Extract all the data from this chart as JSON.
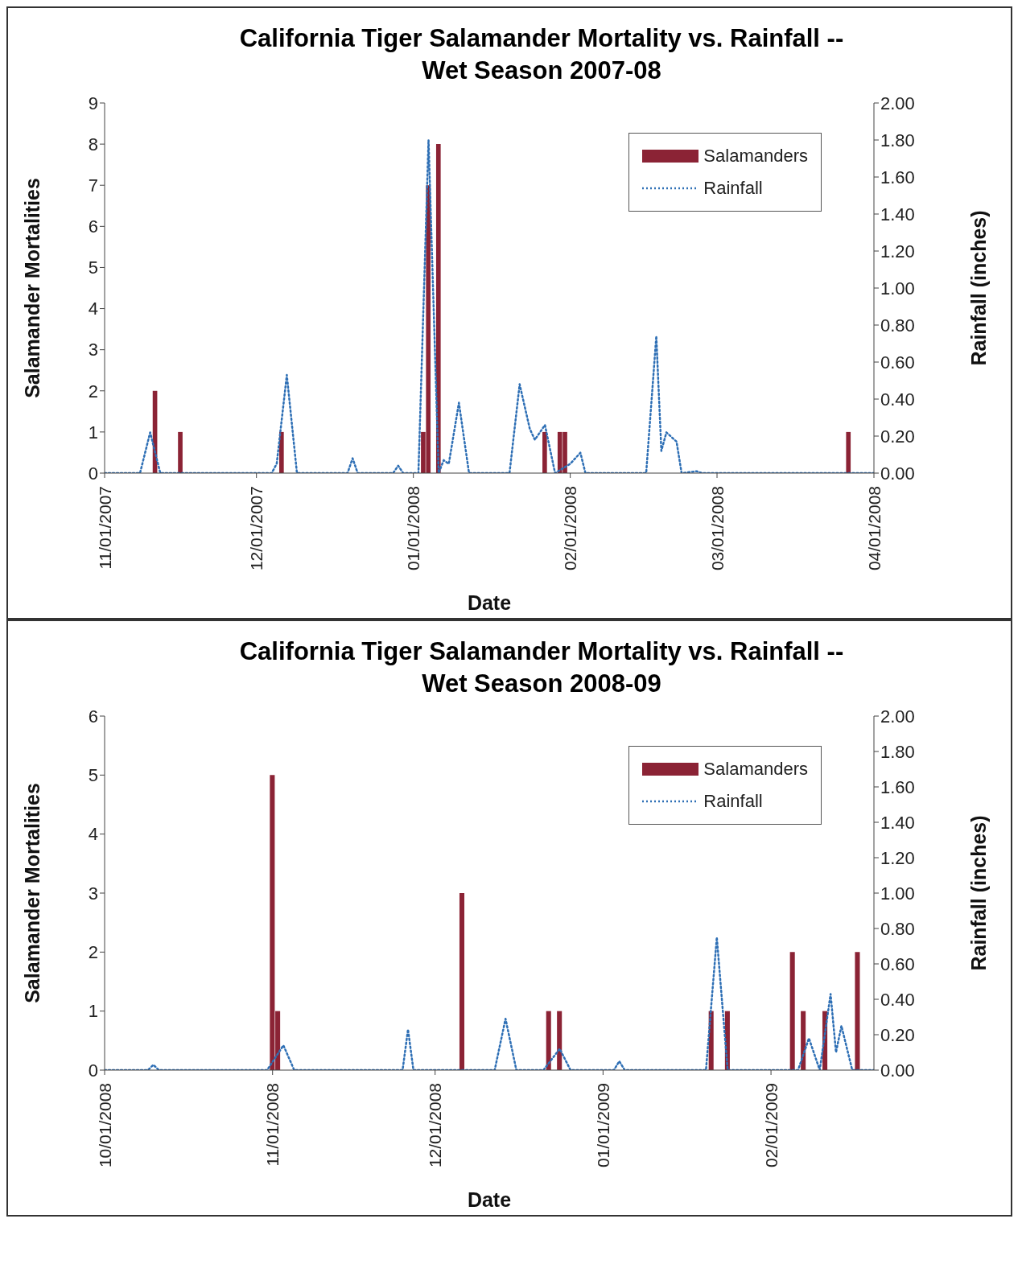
{
  "chart_data": [
    {
      "type": "bar",
      "title": "California Tiger Salamander Mortality vs. Rainfall  --\nWet Season 2007-08",
      "xlabel": "Date",
      "ylabel": "Salamander Mortalities",
      "y2label": "Rainfall (inches)",
      "xlim": [
        "2007-11-01",
        "2008-04-01"
      ],
      "xticks": [
        {
          "value": "2007-11-01",
          "label": "11/01/2007"
        },
        {
          "value": "2007-12-01",
          "label": "12/01/2007"
        },
        {
          "value": "2008-01-01",
          "label": "01/01/2008"
        },
        {
          "value": "2008-02-01",
          "label": "02/01/2008"
        },
        {
          "value": "2008-03-01",
          "label": "03/01/2008"
        },
        {
          "value": "2008-04-01",
          "label": "04/01/2008"
        }
      ],
      "ylim": [
        0,
        9
      ],
      "yticks": [
        0,
        1,
        2,
        3,
        4,
        5,
        6,
        7,
        8,
        9
      ],
      "y2lim": [
        0,
        2
      ],
      "y2ticks": [
        {
          "value": 0,
          "label": "0.00"
        },
        {
          "value": 0.2,
          "label": "0.20"
        },
        {
          "value": 0.4,
          "label": "0.40"
        },
        {
          "value": 0.6,
          "label": "0.60"
        },
        {
          "value": 0.8,
          "label": "0.80"
        },
        {
          "value": 1,
          "label": "1.00"
        },
        {
          "value": 1.2,
          "label": "1.20"
        },
        {
          "value": 1.4,
          "label": "1.40"
        },
        {
          "value": 1.6,
          "label": "1.60"
        },
        {
          "value": 1.8,
          "label": "1.80"
        },
        {
          "value": 2,
          "label": "2.00"
        }
      ],
      "grid": false,
      "legend": "top right",
      "marker": "none",
      "series": [
        {
          "name": "Salamanders",
          "color": "#8b2335",
          "x": [
            "2007-11-11",
            "2007-11-16",
            "2007-12-06",
            "2008-01-03",
            "2008-01-04",
            "2008-01-06",
            "2008-01-27",
            "2008-01-30",
            "2008-01-31",
            "2008-03-27"
          ],
          "values": [
            2,
            1,
            1,
            1,
            7,
            8,
            1,
            1,
            1,
            1
          ]
        },
        {
          "name": "Rainfall",
          "type": "line",
          "axis": "y2",
          "line_style": "dotted",
          "color": "#2e6fb5",
          "x": [
            "2007-11-01",
            "2007-11-08",
            "2007-11-10",
            "2007-11-12",
            "2007-12-04",
            "2007-12-05",
            "2007-12-07",
            "2007-12-09",
            "2007-12-19",
            "2007-12-20",
            "2007-12-21",
            "2007-12-28",
            "2007-12-29",
            "2007-12-30",
            "2008-01-02",
            "2008-01-04",
            "2008-01-06",
            "2008-01-07",
            "2008-01-08",
            "2008-01-10",
            "2008-01-12",
            "2008-01-20",
            "2008-01-22",
            "2008-01-24",
            "2008-01-25",
            "2008-01-27",
            "2008-01-29",
            "2008-02-01",
            "2008-02-03",
            "2008-02-04",
            "2008-02-16",
            "2008-02-18",
            "2008-02-19",
            "2008-02-20",
            "2008-02-22",
            "2008-02-23",
            "2008-02-26",
            "2008-02-27",
            "2008-04-01"
          ],
          "values": [
            0,
            0,
            0.22,
            0,
            0,
            0.05,
            0.53,
            0,
            0,
            0.08,
            0,
            0,
            0.04,
            0,
            0,
            1.8,
            0,
            0.07,
            0.05,
            0.38,
            0,
            0,
            0.48,
            0.24,
            0.18,
            0.26,
            0,
            0.05,
            0.11,
            0,
            0,
            0.74,
            0.12,
            0.22,
            0.17,
            0,
            0.01,
            0,
            0
          ]
        }
      ]
    },
    {
      "type": "bar",
      "title": "California Tiger Salamander Mortality vs. Rainfall  --\nWet Season 2008-09",
      "xlabel": "Date",
      "ylabel": "Salamander Mortalities",
      "y2label": "Rainfall (inches)",
      "xlim": [
        "2008-10-01",
        "2009-02-20"
      ],
      "xticks": [
        {
          "value": "2008-10-01",
          "label": "10/01/2008"
        },
        {
          "value": "2008-11-01",
          "label": "11/01/2008"
        },
        {
          "value": "2008-12-01",
          "label": "12/01/2008"
        },
        {
          "value": "2009-01-01",
          "label": "01/01/2009"
        },
        {
          "value": "2009-02-01",
          "label": "02/01/2009"
        }
      ],
      "ylim": [
        0,
        6
      ],
      "yticks": [
        0,
        1,
        2,
        3,
        4,
        5,
        6
      ],
      "y2lim": [
        0,
        2
      ],
      "y2ticks": [
        {
          "value": 0,
          "label": "0.00"
        },
        {
          "value": 0.2,
          "label": "0.20"
        },
        {
          "value": 0.4,
          "label": "0.40"
        },
        {
          "value": 0.6,
          "label": "0.60"
        },
        {
          "value": 0.8,
          "label": "0.80"
        },
        {
          "value": 1,
          "label": "1.00"
        },
        {
          "value": 1.2,
          "label": "1.20"
        },
        {
          "value": 1.4,
          "label": "1.40"
        },
        {
          "value": 1.6,
          "label": "1.60"
        },
        {
          "value": 1.8,
          "label": "1.80"
        },
        {
          "value": 2,
          "label": "2.00"
        }
      ],
      "grid": false,
      "legend": "top right",
      "marker": "none",
      "series": [
        {
          "name": "Salamanders",
          "color": "#8b2335",
          "x": [
            "2008-11-01",
            "2008-11-02",
            "2008-12-06",
            "2008-12-22",
            "2008-12-24",
            "2009-01-21",
            "2009-01-24",
            "2009-02-05",
            "2009-02-07",
            "2009-02-11",
            "2009-02-17"
          ],
          "values": [
            5,
            1,
            3,
            1,
            1,
            1,
            1,
            2,
            1,
            1,
            2
          ]
        },
        {
          "name": "Rainfall",
          "type": "line",
          "axis": "y2",
          "line_style": "dotted",
          "color": "#2e6fb5",
          "x": [
            "2008-10-01",
            "2008-10-09",
            "2008-10-10",
            "2008-10-11",
            "2008-10-31",
            "2008-11-03",
            "2008-11-05",
            "2008-11-25",
            "2008-11-26",
            "2008-11-27",
            "2008-12-12",
            "2008-12-14",
            "2008-12-16",
            "2008-12-21",
            "2008-12-24",
            "2008-12-26",
            "2009-01-03",
            "2009-01-04",
            "2009-01-05",
            "2009-01-20",
            "2009-01-22",
            "2009-01-24",
            "2009-02-06",
            "2009-02-08",
            "2009-02-10",
            "2009-02-12",
            "2009-02-13",
            "2009-02-14",
            "2009-02-16",
            "2009-02-20"
          ],
          "values": [
            0,
            0,
            0.03,
            0,
            0,
            0.14,
            0,
            0,
            0.23,
            0,
            0,
            0.29,
            0,
            0,
            0.12,
            0,
            0,
            0.05,
            0,
            0,
            0.75,
            0,
            0,
            0.18,
            0,
            0.43,
            0.1,
            0.25,
            0,
            0
          ]
        }
      ]
    }
  ]
}
